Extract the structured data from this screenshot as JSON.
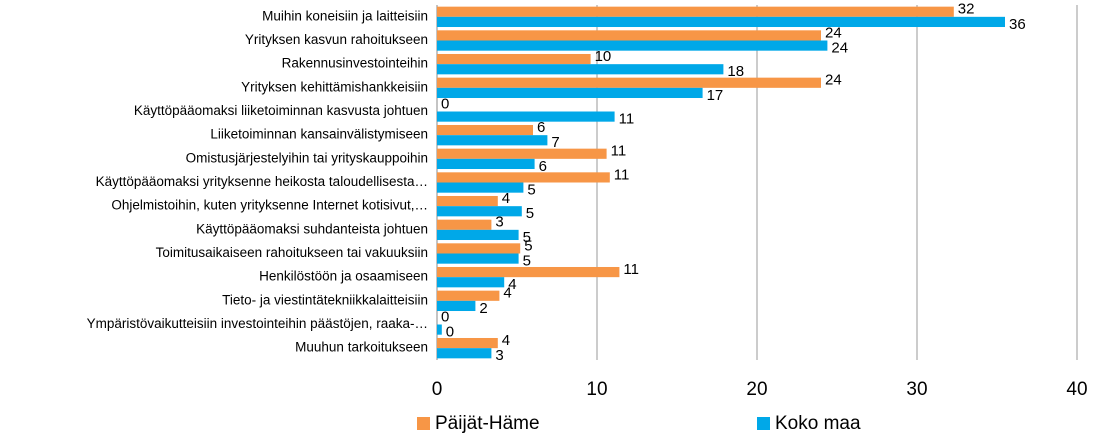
{
  "chart_data": {
    "type": "hbar",
    "categories": [
      "Muihin koneisiin ja laitteisiin",
      "Yrityksen kasvun rahoitukseen",
      "Rakennusinvestointeihin",
      "Yrityksen kehittämishankkeisiin",
      "Käyttöpääomaksi liiketoiminnan kasvusta johtuen",
      "Liiketoiminnan kansainvälistymiseen",
      "Omistusjärjestelyihin tai yrityskauppoihin",
      "Käyttöpääomaksi yrityksenne heikosta taloudellisesta…",
      "Ohjelmistoihin, kuten yrityksenne Internet kotisivut,…",
      "Käyttöpääomaksi suhdanteista johtuen",
      "Toimitusaikaiseen rahoitukseen tai vakuuksiin",
      "Henkilöstöön ja osaamiseen",
      "Tieto- ja viestintätekniikkalaitteisiin",
      "Ympäristövaikutteisiin investointeihin päästöjen, raaka-…",
      "Muuhun tarkoitukseen"
    ],
    "series": [
      {
        "name": "Päijät-Häme",
        "color": "#f79646",
        "values": [
          32.3,
          24.0,
          9.6,
          24.0,
          0,
          6.0,
          10.6,
          10.8,
          3.8,
          3.4,
          5.2,
          11.4,
          3.9,
          0,
          3.8
        ],
        "value_labels": [
          "32",
          "24",
          "10",
          "24",
          "0",
          "6",
          "11",
          "11",
          "4",
          "3",
          "5",
          "11",
          "4",
          "0",
          "4"
        ]
      },
      {
        "name": "Koko maa",
        "color": "#00a8e8",
        "values": [
          35.5,
          24.4,
          17.9,
          16.6,
          11.1,
          6.9,
          6.1,
          5.4,
          5.3,
          5.1,
          5.1,
          4.2,
          2.4,
          0.3,
          3.4
        ],
        "value_labels": [
          "36",
          "24",
          "18",
          "17",
          "11",
          "7",
          "6",
          "5",
          "5",
          "5",
          "5",
          "4",
          "2",
          "0",
          "3"
        ]
      }
    ],
    "xlim": [
      0,
      40
    ],
    "xticks": [
      0,
      10,
      20,
      30,
      40
    ],
    "grid": true,
    "legend": "bottom"
  }
}
